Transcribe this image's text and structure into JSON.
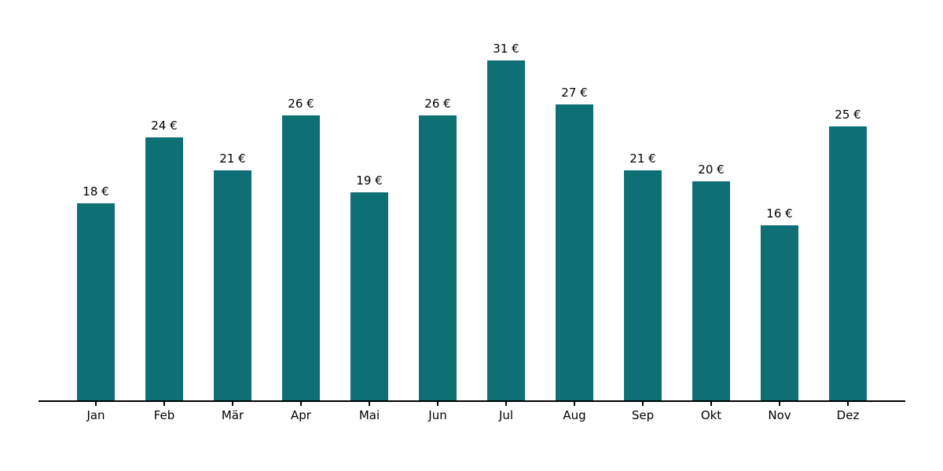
{
  "chart_data": {
    "type": "bar",
    "title": "",
    "xlabel": "",
    "ylabel": "",
    "categories": [
      "Jan",
      "Feb",
      "Mär",
      "Apr",
      "Mai",
      "Jun",
      "Jul",
      "Aug",
      "Sep",
      "Okt",
      "Nov",
      "Dez"
    ],
    "values": [
      18,
      24,
      21,
      26,
      19,
      26,
      31,
      27,
      21,
      20,
      16,
      25
    ],
    "value_labels": [
      "18 €",
      "24 €",
      "21 €",
      "26 €",
      "19 €",
      "26 €",
      "31 €",
      "27 €",
      "21 €",
      "20 €",
      "16 €",
      "25 €"
    ],
    "currency_suffix": " €",
    "ylim": [
      0,
      32.6
    ],
    "grid": false,
    "legend": null,
    "colors": {
      "bar": "#0e6f74",
      "text": "#000000",
      "axis": "#000000"
    }
  }
}
